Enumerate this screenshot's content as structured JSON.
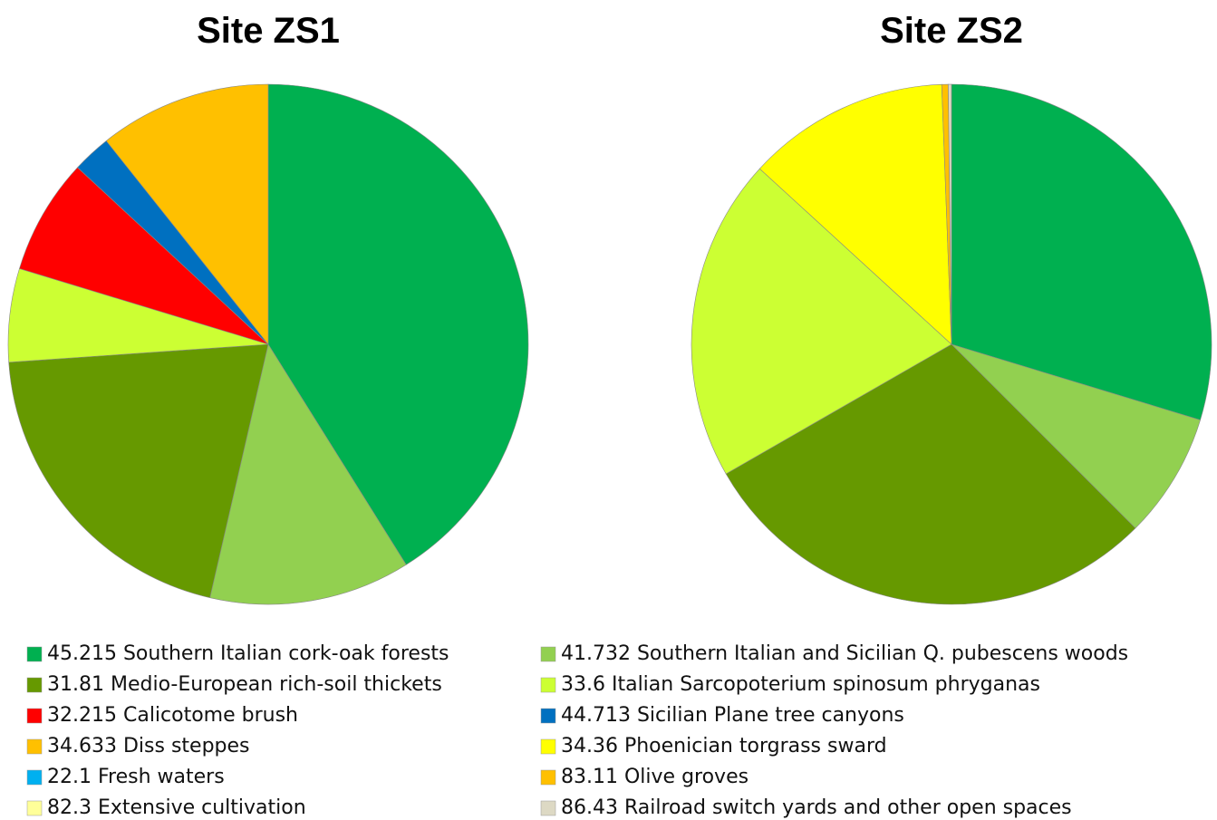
{
  "chart_data": [
    {
      "type": "pie",
      "title": "Site ZS1",
      "values": [
        41.1,
        12.5,
        20.3,
        5.8,
        7.2,
        2.4,
        10.7
      ],
      "colors": [
        "#00b050",
        "#92d050",
        "#669900",
        "#ccff33",
        "#ff0000",
        "#0070c0",
        "#ffc000"
      ]
    },
    {
      "type": "pie",
      "title": "Site ZS2",
      "values": [
        29.7,
        7.8,
        29.2,
        20.1,
        12.6,
        0.4,
        0.2
      ],
      "colors": [
        "#00b050",
        "#92d050",
        "#669900",
        "#ccff33",
        "#ffff00",
        "#ffc000",
        "#ddd9c4"
      ]
    }
  ],
  "legend": [
    {
      "label": "45.215 Southern Italian cork-oak forests",
      "color": "#00b050"
    },
    {
      "label": "31.81 Medio-European rich-soil thickets",
      "color": "#669900"
    },
    {
      "label": "32.215 Calicotome brush",
      "color": "#ff0000"
    },
    {
      "label": "34.633 Diss steppes",
      "color": "#ffc000"
    },
    {
      "label": "22.1 Fresh waters",
      "color": "#00b0f0"
    },
    {
      "label": "82.3 Extensive cultivation",
      "color": "#ffff99"
    },
    {
      "label": "41.732 Southern Italian and Sicilian Q. pubescens woods",
      "color": "#92d050"
    },
    {
      "label": "33.6 Italian Sarcopoterium spinosum phryganas",
      "color": "#ccff33"
    },
    {
      "label": "44.713 Sicilian Plane tree canyons",
      "color": "#0070c0"
    },
    {
      "label": "34.36 Phoenician torgrass sward",
      "color": "#ffff00"
    },
    {
      "label": "83.11 Olive groves",
      "color": "#ffc000"
    },
    {
      "label": "86.43 Railroad switch yards and other open spaces",
      "color": "#ddd9c4"
    }
  ]
}
